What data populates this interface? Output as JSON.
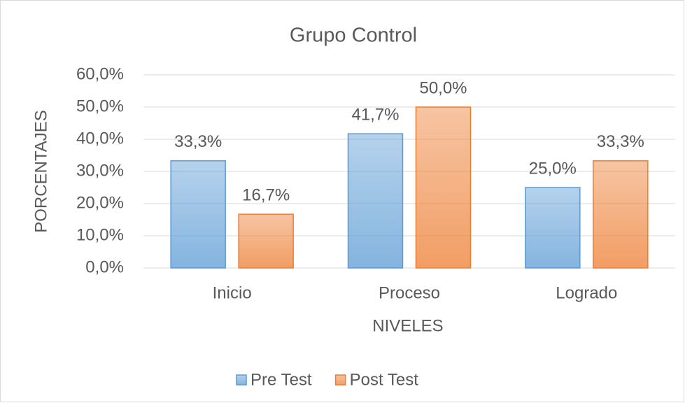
{
  "chart_data": {
    "type": "bar",
    "title": "Grupo Control",
    "x_label": "NIVELES",
    "y_label": "PORCENTAJES",
    "categories": [
      "Inicio",
      "Proceso",
      "Logrado"
    ],
    "series": [
      {
        "name": "Pre Test",
        "color": "#5b9bd5",
        "values": [
          33.3,
          41.7,
          25.0
        ],
        "value_labels": [
          "33,3%",
          "41,7%",
          "25,0%"
        ]
      },
      {
        "name": "Post Test",
        "color": "#ed7d31",
        "values": [
          16.7,
          50.0,
          33.3
        ],
        "value_labels": [
          "16,7%",
          "50,0%",
          "33,3%"
        ]
      }
    ],
    "ylim": [
      0,
      60
    ],
    "yticks": [
      {
        "value": 0,
        "label": "0,0%"
      },
      {
        "value": 10,
        "label": "10,0%"
      },
      {
        "value": 20,
        "label": "20,0%"
      },
      {
        "value": 30,
        "label": "30,0%"
      },
      {
        "value": 40,
        "label": "40,0%"
      },
      {
        "value": 50,
        "label": "50,0%"
      },
      {
        "value": 60,
        "label": "60,0%"
      }
    ],
    "grid": true,
    "legend": "bottom"
  }
}
